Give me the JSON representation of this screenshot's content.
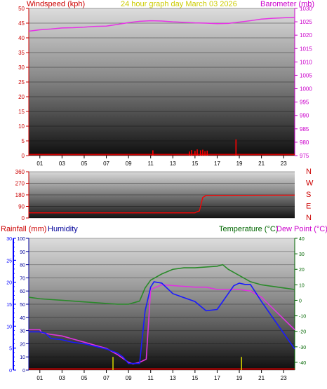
{
  "colors": {
    "wind": "#cc0000",
    "baro": "#cc00cc",
    "accent": "#cccc00",
    "humidity": "#000099",
    "temperature": "#006600",
    "dewpoint": "#cc00cc",
    "temp_line": "#2a8a2a",
    "dew_line": "#e033e0",
    "hum_line": "#1a1aff",
    "rain_axis": "#0000ff",
    "rain_bar": "#cccc00"
  },
  "chart_data": [
    {
      "type": "line",
      "title_left": "Windspeed (kph)",
      "title_center": "24 hour graph day   March 03 2026",
      "title_right": "Barometer (mb)",
      "x_ticks": [
        "01",
        "03",
        "05",
        "07",
        "09",
        "11",
        "13",
        "15",
        "17",
        "19",
        "21",
        "23"
      ],
      "y_left": {
        "range": [
          0,
          50
        ],
        "ticks": [
          "0",
          "5",
          "10",
          "15",
          "20",
          "25",
          "30",
          "35",
          "40",
          "45",
          "50"
        ]
      },
      "y_right": {
        "range": [
          975,
          1030
        ],
        "ticks": [
          "975",
          "980",
          "985",
          "990",
          "995",
          "1000",
          "1005",
          "1010",
          "1015",
          "1020",
          "1025",
          "1030"
        ]
      },
      "series": [
        {
          "name": "Barometer (mb)",
          "x": [
            0,
            1,
            2,
            3,
            4,
            5,
            6,
            7,
            8,
            9,
            10,
            11,
            12,
            13,
            14,
            15,
            16,
            17,
            18,
            19,
            20,
            21,
            22,
            23,
            24
          ],
          "values": [
            1021.5,
            1022,
            1022.3,
            1022.7,
            1022.8,
            1023,
            1023.3,
            1023.4,
            1024,
            1024.7,
            1025.2,
            1025.4,
            1025.3,
            1025,
            1024.8,
            1024.6,
            1024.5,
            1024.3,
            1024.4,
            1024.9,
            1025.4,
            1026,
            1026.3,
            1026.5,
            1026.7
          ]
        },
        {
          "name": "Windspeed (kph)",
          "gusts": [
            [
              11.2,
              1.8
            ],
            [
              14.5,
              1.4
            ],
            [
              14.7,
              1.9
            ],
            [
              15,
              1.6
            ],
            [
              15.2,
              2.1
            ],
            [
              15.5,
              1.8
            ],
            [
              15.7,
              2
            ],
            [
              15.9,
              1.5
            ],
            [
              16.1,
              1.7
            ],
            [
              18.7,
              5.5
            ]
          ]
        }
      ]
    },
    {
      "type": "line",
      "title": "Wind direction",
      "y_ticks": [
        "0",
        "90",
        "180",
        "270",
        "360"
      ],
      "compass": [
        "N",
        "W",
        "S",
        "E",
        "N"
      ],
      "series": [
        {
          "name": "direction",
          "x": [
            0,
            15,
            15.1,
            15.4,
            15.7,
            16,
            24
          ],
          "values": [
            40,
            40,
            45,
            55,
            160,
            175,
            178
          ]
        }
      ]
    },
    {
      "type": "line",
      "title_rain": "Rainfall (mm)",
      "title_humidity": "Humidity",
      "title_temp": "Temperature (°C)",
      "title_dew": "Dew Point (°C)",
      "x_ticks": [
        "01",
        "03",
        "05",
        "07",
        "09",
        "11",
        "13",
        "15",
        "17",
        "19",
        "21",
        "23"
      ],
      "humidity_axis": {
        "range": [
          0,
          100
        ],
        "ticks": [
          "0",
          "10",
          "20",
          "30",
          "40",
          "50",
          "60",
          "70",
          "80",
          "90",
          "100"
        ]
      },
      "rain_axis": {
        "range": [
          0,
          30
        ],
        "ticks": [
          "0",
          "5",
          "10",
          "15",
          "20",
          "25",
          "30"
        ]
      },
      "temp_axis": {
        "range": [
          -45,
          40
        ],
        "ticks": [
          "-40",
          "-30",
          "-20",
          "-10",
          "0",
          "10",
          "20",
          "30",
          "40"
        ]
      },
      "series": [
        {
          "name": "Temperature (°C)",
          "x": [
            0,
            1,
            2,
            3,
            4,
            5,
            6,
            7,
            8,
            9,
            10,
            10.5,
            11,
            12,
            13,
            14,
            15,
            16,
            17,
            17.5,
            18,
            19,
            20,
            21,
            22,
            23,
            24
          ],
          "values": [
            2,
            1,
            0.5,
            0,
            -0.5,
            -1,
            -1.5,
            -2,
            -2.5,
            -2.5,
            -0.5,
            8,
            13,
            17,
            20,
            21,
            21,
            21.5,
            22,
            23,
            20,
            16,
            12,
            10,
            9,
            8,
            7
          ]
        },
        {
          "name": "Dew Point (°C)",
          "x": [
            0,
            1,
            1.2,
            2,
            3,
            4,
            5,
            6,
            7,
            8,
            9,
            9.4,
            10,
            10.6,
            11,
            12,
            13,
            14,
            15,
            16,
            17,
            18,
            19,
            20,
            21,
            22,
            23,
            24
          ],
          "values": [
            -19,
            -19,
            -21,
            -22,
            -23,
            -25,
            -27,
            -29,
            -31,
            -35,
            -40,
            -41,
            -40,
            -38,
            7,
            10,
            9.5,
            9,
            8.5,
            8.5,
            7,
            7,
            7,
            6,
            2,
            -5,
            -12,
            -19
          ]
        },
        {
          "name": "Humidity",
          "x": [
            0,
            1,
            1.5,
            2,
            3,
            4,
            5,
            6,
            7,
            8,
            8.5,
            9,
            10,
            10.5,
            11,
            11.3,
            12,
            13,
            14,
            15,
            16,
            17,
            17.5,
            18,
            18.5,
            19,
            19.5,
            20,
            21,
            22,
            23,
            24
          ],
          "values": [
            29,
            29,
            28,
            24,
            23,
            21,
            20,
            18,
            16,
            13,
            10,
            5,
            5,
            45,
            63,
            67,
            66,
            58,
            55,
            52,
            45,
            46,
            52,
            58,
            64,
            66,
            65,
            65,
            52,
            40,
            28,
            16
          ]
        },
        {
          "name": "Rainfall (mm)",
          "x": [
            7.6,
            19.2
          ],
          "values": [
            3,
            3
          ]
        }
      ]
    }
  ]
}
